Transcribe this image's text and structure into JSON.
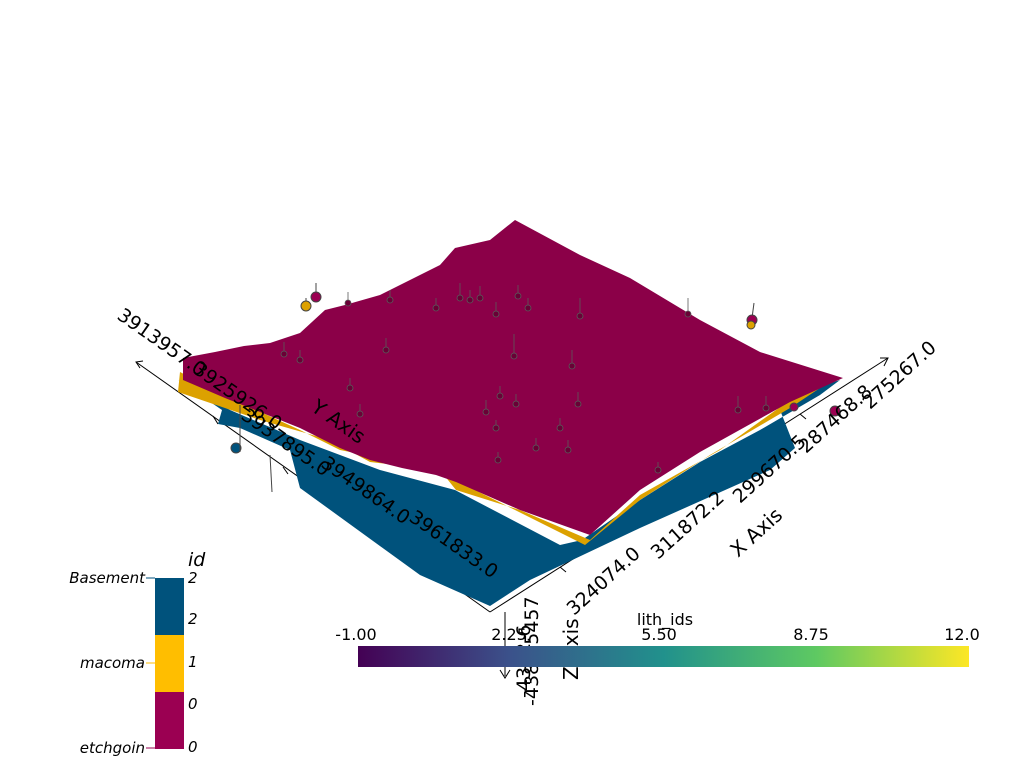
{
  "axes": {
    "x": {
      "title": "X Axis",
      "ticks": [
        "324074.0",
        "311872.2",
        "299670.5",
        "287468.8",
        "275267.0"
      ]
    },
    "y": {
      "title": "Y Axis",
      "ticks": [
        "3913957.0",
        "3925926.0",
        "3937895.0",
        "3949864.0",
        "3961833.0"
      ]
    },
    "z": {
      "title": "Z Axis",
      "ticks": [
        "-4387.5457",
        "-4382.6"
      ]
    }
  },
  "scalar_bar": {
    "title": "lith_ids",
    "ticks": [
      "-1.00",
      "2.25",
      "5.50",
      "8.75",
      "12.0"
    ],
    "colormap": [
      "#440154",
      "#3b528b",
      "#21918c",
      "#5ec962",
      "#fde725"
    ]
  },
  "categorical_bar": {
    "title": "id",
    "entries": [
      {
        "label": "Basement",
        "upper": "2",
        "lower": "2",
        "color": "#00527c"
      },
      {
        "label": "macoma",
        "upper": "1",
        "lower": "",
        "color": "#ffbe00"
      },
      {
        "label": "etchgoin",
        "upper": "0",
        "lower": "0",
        "color": "#9b0052"
      }
    ]
  },
  "surfaces": [
    {
      "name": "Basement",
      "color": "#00527c"
    },
    {
      "name": "macoma",
      "color": "#dca100"
    },
    {
      "name": "etchgoin",
      "color": "#8b0048"
    }
  ]
}
